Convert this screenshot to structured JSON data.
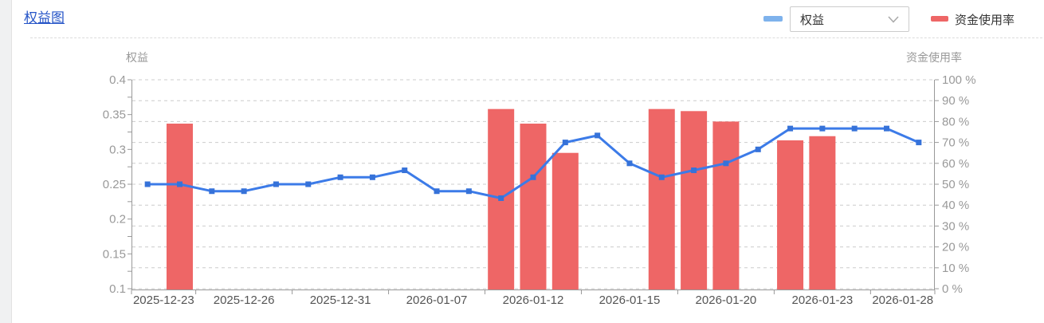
{
  "page": {
    "header": {
      "title": "权益图",
      "series_select": {
        "value": "权益",
        "chevron_icon": "chevron-down"
      },
      "legend": [
        {
          "label": "权益",
          "color": "#7eb2ec"
        },
        {
          "label": "资金使用率",
          "color": "#ee6666"
        }
      ]
    }
  },
  "colors": {
    "title_link": "#2554c7",
    "line": "#3c7be8",
    "line_marker": "#3672d9",
    "bar": "#ee6666",
    "gridline": "#cccccc",
    "axis_line": "#999999",
    "axis_text": "#999999",
    "x_label_text": "#555555",
    "page_gutter": "#f0f1f2"
  },
  "chart_data": {
    "type": "combo-line-bar",
    "title": "权益图",
    "n_categories": 25,
    "x_tick_labels": [
      "2025-12-23",
      "2025-12-26",
      "2025-12-31",
      "2026-01-07",
      "2026-01-12",
      "2026-01-15",
      "2026-01-20",
      "2026-01-23",
      "2026-01-28"
    ],
    "x_tick_groups": [
      2,
      3,
      3,
      3,
      3,
      3,
      3,
      3,
      2
    ],
    "left_axis": {
      "name": "权益",
      "min": 0.1,
      "max": 0.4,
      "label_step": 0.05,
      "minor_tick_step": 0.025,
      "tick_labels": [
        "0.4",
        "0.35",
        "0.3",
        "0.25",
        "0.2",
        "0.15",
        "0.1"
      ]
    },
    "right_axis": {
      "name": "资金使用率",
      "min": 0,
      "max": 100,
      "label_step": 10,
      "tick_labels": [
        "100 %",
        "90 %",
        "80 %",
        "70 %",
        "60 %",
        "50 %",
        "40 %",
        "30 %",
        "20 %",
        "10 %",
        "0 %"
      ]
    },
    "grid": {
      "horizontal_dashed": true,
      "vertical": false
    },
    "legend_position": "top-right",
    "series": [
      {
        "name": "权益",
        "type": "line",
        "y_axis": "left",
        "marker": "square",
        "values": [
          0.25,
          0.25,
          0.24,
          0.24,
          0.25,
          0.25,
          0.26,
          0.26,
          0.27,
          0.24,
          0.24,
          0.23,
          0.26,
          0.31,
          0.32,
          0.28,
          0.26,
          0.27,
          0.28,
          0.3,
          0.33,
          0.33,
          0.33,
          0.33,
          0.31
        ]
      },
      {
        "name": "资金使用率",
        "type": "bar",
        "y_axis": "right",
        "values": [
          null,
          79,
          null,
          null,
          null,
          null,
          null,
          null,
          null,
          null,
          null,
          86,
          79,
          65,
          null,
          null,
          86,
          85,
          80,
          null,
          71,
          73,
          null,
          null,
          null
        ]
      }
    ]
  }
}
